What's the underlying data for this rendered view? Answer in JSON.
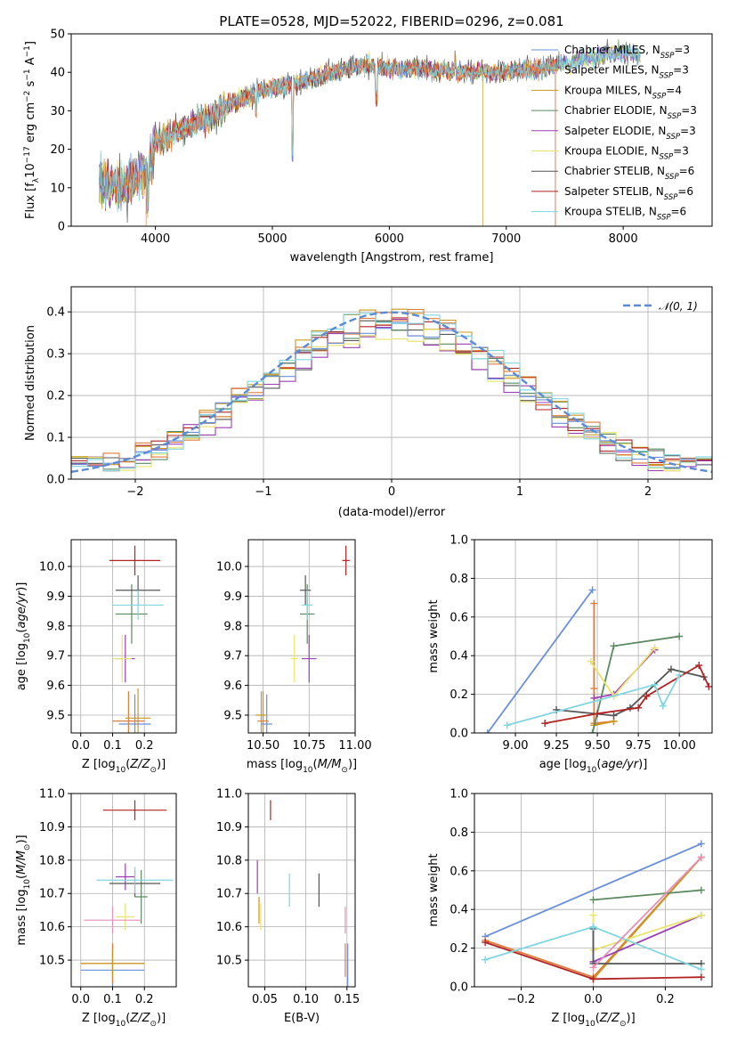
{
  "title": "PLATE=0528, MJD=52022, FIBERID=0296, z=0.081",
  "legend_labels": [
    {
      "base": "Chabrier MILES, N",
      "sub": "SSP",
      "tail": "=3"
    },
    {
      "base": "Salpeter MILES, N",
      "sub": "SSP",
      "tail": "=3"
    },
    {
      "base": "Kroupa MILES, N",
      "sub": "SSP",
      "tail": "=4"
    },
    {
      "base": "Chabrier ELODIE, N",
      "sub": "SSP",
      "tail": "=3"
    },
    {
      "base": "Salpeter ELODIE, N",
      "sub": "SSP",
      "tail": "=3"
    },
    {
      "base": "Kroupa ELODIE, N",
      "sub": "SSP",
      "tail": "=3"
    },
    {
      "base": "Chabrier STELIB, N",
      "sub": "SSP",
      "tail": "=6"
    },
    {
      "base": "Salpeter STELIB, N",
      "sub": "SSP",
      "tail": "=6"
    },
    {
      "base": "Kroupa STELIB, N",
      "sub": "SSP",
      "tail": "=6"
    }
  ],
  "colors": [
    "#6a8fd9",
    "#e07b39",
    "#c9971d",
    "#5a8a5f",
    "#9b3fb5",
    "#e8e36a",
    "#555555",
    "#b22222",
    "#7fd6e0"
  ],
  "chart_data": [
    {
      "id": "spectrum",
      "type": "line",
      "xlabel": "wavelength [Angstrom, rest frame]",
      "ylabel": "Flux [f_λ 10^-17 erg cm^-2 s^-1 A^-1]",
      "xlim": [
        3280,
        8760
      ],
      "ylim": [
        0,
        50
      ],
      "xticks": [
        4000,
        5000,
        6000,
        7000,
        8000
      ],
      "yticks": [
        0,
        10,
        20,
        30,
        40,
        50
      ],
      "grid": false,
      "legend": "right",
      "continuum": [
        [
          3520,
          12
        ],
        [
          3700,
          10
        ],
        [
          3900,
          14
        ],
        [
          4000,
          22
        ],
        [
          4200,
          25
        ],
        [
          4400,
          27
        ],
        [
          4700,
          33
        ],
        [
          5000,
          36
        ],
        [
          5200,
          37
        ],
        [
          5500,
          40
        ],
        [
          5800,
          42
        ],
        [
          6000,
          41
        ],
        [
          6300,
          41
        ],
        [
          6600,
          40
        ],
        [
          7000,
          40
        ],
        [
          7300,
          41
        ],
        [
          7600,
          43
        ],
        [
          7900,
          45
        ],
        [
          8100,
          45
        ],
        [
          8150,
          44
        ]
      ],
      "series_ends": [
        8150,
        7450,
        6800,
        8150,
        8150,
        8150,
        8150,
        7450,
        8150
      ],
      "dropouts": [
        [
          3920,
          1
        ],
        [
          6800,
          2
        ],
        [
          7420,
          1
        ],
        [
          7420,
          7
        ]
      ],
      "absorption_lines": [
        [
          3934,
          8
        ],
        [
          3969,
          6
        ],
        [
          4861,
          5
        ],
        [
          5175,
          18
        ],
        [
          5890,
          8
        ],
        [
          6563,
          -3
        ]
      ]
    },
    {
      "id": "residuals",
      "type": "step",
      "xlabel": "(data-model)/error",
      "ylabel": "Normed distribution",
      "xlim": [
        -2.5,
        2.5
      ],
      "ylim": [
        0,
        0.46
      ],
      "xticks": [
        -2,
        -1,
        0,
        1,
        2
      ],
      "yticks": [
        0.0,
        0.1,
        0.2,
        0.3,
        0.4
      ],
      "grid": true,
      "legend": "top-right",
      "gaussian_label": "N(0,1)",
      "gaussian_color": "#5b8bd5",
      "bins": 40
    },
    {
      "id": "age_vs_Z",
      "type": "errorbar",
      "xlabel": "Z [log10(Z/Z_sun)]",
      "ylabel": "age  [log10(age/yr)]",
      "xlim": [
        -0.03,
        0.3
      ],
      "ylim": [
        9.44,
        10.09
      ],
      "xticks": [
        0.0,
        0.1,
        0.2
      ],
      "yticks": [
        9.5,
        9.6,
        9.7,
        9.8,
        9.9,
        10.0
      ],
      "grid": true,
      "points": [
        {
          "x": 0.17,
          "xerr": 0.05,
          "y": 9.47,
          "yerr": 0.1,
          "c": 0
        },
        {
          "x": 0.15,
          "xerr": 0.05,
          "y": 9.48,
          "yerr": 0.1,
          "c": 1
        },
        {
          "x": 0.18,
          "xerr": 0.04,
          "y": 9.49,
          "yerr": 0.1,
          "c": 2
        },
        {
          "x": 0.16,
          "xerr": 0.05,
          "y": 9.84,
          "yerr": 0.1,
          "c": 3
        },
        {
          "x": 0.14,
          "xerr": 0.03,
          "y": 9.69,
          "yerr": 0.08,
          "c": 4
        },
        {
          "x": 0.13,
          "xerr": 0.03,
          "y": 9.69,
          "yerr": 0.08,
          "c": 5
        },
        {
          "x": 0.18,
          "xerr": 0.07,
          "y": 9.92,
          "yerr": 0.05,
          "c": 6
        },
        {
          "x": 0.17,
          "xerr": 0.08,
          "y": 10.02,
          "yerr": 0.05,
          "c": 7
        },
        {
          "x": 0.18,
          "xerr": 0.08,
          "y": 9.87,
          "yerr": 0.05,
          "c": 8
        }
      ]
    },
    {
      "id": "age_vs_mass",
      "type": "errorbar",
      "xlabel": "mass [log10(M/M_sun)]",
      "ylabel": "",
      "xlim": [
        10.42,
        11.0
      ],
      "ylim": [
        9.44,
        10.09
      ],
      "xticks": [
        10.5,
        10.75,
        11.0
      ],
      "yticks": [
        9.5,
        9.6,
        9.7,
        9.8,
        9.9,
        10.0
      ],
      "grid": true,
      "points": [
        {
          "x": 10.52,
          "xerr": 0.03,
          "y": 9.47,
          "yerr": 0.1,
          "c": 0
        },
        {
          "x": 10.5,
          "xerr": 0.03,
          "y": 9.48,
          "yerr": 0.1,
          "c": 1
        },
        {
          "x": 10.49,
          "xerr": 0.03,
          "y": 9.5,
          "yerr": 0.08,
          "c": 2
        },
        {
          "x": 10.74,
          "xerr": 0.04,
          "y": 9.84,
          "yerr": 0.1,
          "c": 3
        },
        {
          "x": 10.75,
          "xerr": 0.04,
          "y": 9.69,
          "yerr": 0.08,
          "c": 4
        },
        {
          "x": 10.67,
          "xerr": 0.02,
          "y": 9.69,
          "yerr": 0.08,
          "c": 5
        },
        {
          "x": 10.73,
          "xerr": 0.03,
          "y": 9.92,
          "yerr": 0.05,
          "c": 6
        },
        {
          "x": 10.95,
          "xerr": 0.02,
          "y": 10.02,
          "yerr": 0.05,
          "c": 7
        },
        {
          "x": 10.74,
          "xerr": 0.03,
          "y": 9.87,
          "yerr": 0.05,
          "c": 8
        }
      ]
    },
    {
      "id": "weight_vs_age",
      "type": "line",
      "xlabel": "age  [log10(age/yr)]",
      "ylabel": "mass weight",
      "xlim": [
        8.75,
        10.2
      ],
      "ylim": [
        0.0,
        1.0
      ],
      "xticks": [
        9.0,
        9.25,
        9.5,
        9.75,
        10.0
      ],
      "yticks": [
        0.0,
        0.2,
        0.4,
        0.6,
        0.8,
        1.0
      ],
      "grid": true,
      "series": [
        {
          "c": 0,
          "points": [
            [
              8.83,
              0.0
            ],
            [
              9.47,
              0.74
            ]
          ]
        },
        {
          "c": 1,
          "points": [
            [
              9.48,
              0.67
            ],
            [
              9.48,
              0.23
            ],
            [
              9.48,
              0.05
            ],
            [
              9.6,
              0.06
            ]
          ]
        },
        {
          "c": 2,
          "points": [
            [
              9.48,
              0.04
            ],
            [
              9.6,
              0.06
            ]
          ]
        },
        {
          "c": 3,
          "points": [
            [
              9.47,
              0.0
            ],
            [
              9.6,
              0.45
            ],
            [
              10.0,
              0.5
            ]
          ]
        },
        {
          "c": 4,
          "points": [
            [
              9.48,
              0.18
            ],
            [
              9.6,
              0.2
            ],
            [
              9.85,
              0.43
            ]
          ]
        },
        {
          "c": 5,
          "points": [
            [
              9.46,
              0.37
            ],
            [
              9.6,
              0.19
            ],
            [
              9.85,
              0.44
            ]
          ]
        },
        {
          "c": 6,
          "points": [
            [
              9.25,
              0.12
            ],
            [
              9.6,
              0.09
            ],
            [
              9.7,
              0.13
            ],
            [
              9.95,
              0.33
            ],
            [
              10.15,
              0.29
            ]
          ]
        },
        {
          "c": 7,
          "points": [
            [
              9.18,
              0.05
            ],
            [
              9.5,
              0.1
            ],
            [
              9.75,
              0.13
            ],
            [
              9.8,
              0.19
            ],
            [
              10.12,
              0.35
            ],
            [
              10.18,
              0.24
            ]
          ]
        },
        {
          "c": 8,
          "points": [
            [
              8.95,
              0.04
            ],
            [
              9.85,
              0.25
            ],
            [
              9.9,
              0.14
            ],
            [
              10.0,
              0.3
            ]
          ]
        }
      ]
    },
    {
      "id": "mass_vs_Z",
      "type": "errorbar",
      "xlabel": "Z [log10(Z/Z_sun)]",
      "ylabel": "mass [log10(M/M_sun)]",
      "xlim": [
        -0.03,
        0.3
      ],
      "ylim": [
        10.42,
        11.0
      ],
      "xticks": [
        0.0,
        0.1,
        0.2
      ],
      "yticks": [
        10.5,
        10.6,
        10.7,
        10.8,
        10.9,
        11.0
      ],
      "grid": true,
      "points": [
        {
          "x": 0.1,
          "xerr": 0.1,
          "y": 10.47,
          "yerr": 0.08,
          "c": 0
        },
        {
          "x": 0.1,
          "xerr": 0.1,
          "y": 10.49,
          "yerr": 0.06,
          "c": 1
        },
        {
          "x": 0.1,
          "xerr": 0.1,
          "y": 10.49,
          "yerr": 0.04,
          "c": 2
        },
        {
          "x": 0.19,
          "xerr": 0.02,
          "y": 10.69,
          "yerr": 0.08,
          "c": 3
        },
        {
          "x": 0.14,
          "xerr": 0.03,
          "y": 10.75,
          "yerr": 0.04,
          "c": 4
        },
        {
          "x": 0.14,
          "xerr": 0.03,
          "y": 10.63,
          "yerr": 0.04,
          "c": 5
        },
        {
          "x": 0.17,
          "xerr": 0.08,
          "y": 10.73,
          "yerr": 0.04,
          "c": 6
        },
        {
          "x": 0.17,
          "xerr": 0.1,
          "y": 10.95,
          "yerr": 0.03,
          "c": 7
        },
        {
          "x": 0.17,
          "xerr": 0.12,
          "y": 10.74,
          "yerr": 0.04,
          "c": 8
        },
        {
          "x": 0.1,
          "xerr": 0.09,
          "y": 10.62,
          "yerr": 0.04,
          "c": -1
        }
      ]
    },
    {
      "id": "mass_vs_ebv",
      "type": "errorbar",
      "xlabel": "E(B-V)",
      "ylabel": "",
      "xlim": [
        0.03,
        0.16
      ],
      "ylim": [
        10.42,
        11.0
      ],
      "xticks": [
        0.05,
        0.1,
        0.15
      ],
      "yticks": [
        10.5,
        10.6,
        10.7,
        10.8,
        10.9,
        11.0
      ],
      "grid": true,
      "points": [
        {
          "x": 0.151,
          "xerr": 0.0,
          "y": 10.48,
          "yerr": 0.07,
          "c": 0
        },
        {
          "x": 0.148,
          "xerr": 0.0,
          "y": 10.5,
          "yerr": 0.05,
          "c": 1
        },
        {
          "x": 0.043,
          "xerr": 0.0,
          "y": 10.65,
          "yerr": 0.04,
          "c": 2
        },
        {
          "x": 0.041,
          "xerr": 0.0,
          "y": 10.75,
          "yerr": 0.05,
          "c": 4
        },
        {
          "x": 0.045,
          "xerr": 0.0,
          "y": 10.63,
          "yerr": 0.04,
          "c": 5
        },
        {
          "x": 0.116,
          "xerr": 0.0,
          "y": 10.71,
          "yerr": 0.05,
          "c": 6
        },
        {
          "x": 0.057,
          "xerr": 0.0,
          "y": 10.95,
          "yerr": 0.03,
          "c": 7
        },
        {
          "x": 0.08,
          "xerr": 0.0,
          "y": 10.71,
          "yerr": 0.05,
          "c": 8
        },
        {
          "x": 0.148,
          "xerr": 0.0,
          "y": 10.62,
          "yerr": 0.04,
          "c": -1
        }
      ]
    },
    {
      "id": "weight_vs_Z",
      "type": "line",
      "xlabel": "Z [log10(Z/Z_sun)]",
      "ylabel": "mass weight",
      "xlim": [
        -0.33,
        0.33
      ],
      "ylim": [
        0.0,
        1.0
      ],
      "xticks": [
        -0.2,
        0.0,
        0.2
      ],
      "yticks": [
        0.0,
        0.2,
        0.4,
        0.6,
        0.8,
        1.0
      ],
      "grid": true,
      "series": [
        {
          "c": 0,
          "points": [
            [
              -0.3,
              0.26
            ],
            [
              0.3,
              0.74
            ]
          ]
        },
        {
          "c": 1,
          "points": [
            [
              -0.3,
              0.24
            ],
            [
              0.0,
              0.05
            ],
            [
              0.3,
              0.67
            ]
          ]
        },
        {
          "c": 2,
          "points": [
            [
              0.0,
              0.04
            ],
            [
              0.3,
              0.67
            ]
          ]
        },
        {
          "c": 3,
          "points": [
            [
              0.0,
              0.45
            ],
            [
              0.3,
              0.5
            ]
          ]
        },
        {
          "c": 4,
          "points": [
            [
              0.0,
              0.13
            ],
            [
              0.3,
              0.37
            ]
          ]
        },
        {
          "c": 5,
          "points": [
            [
              0.0,
              0.37
            ],
            [
              0.0,
              0.19
            ],
            [
              0.3,
              0.37
            ]
          ]
        },
        {
          "c": 6,
          "points": [
            [
              0.0,
              0.3
            ],
            [
              0.0,
              0.12
            ],
            [
              0.3,
              0.12
            ]
          ]
        },
        {
          "c": 7,
          "points": [
            [
              -0.3,
              0.23
            ],
            [
              0.0,
              0.04
            ],
            [
              0.3,
              0.05
            ]
          ]
        },
        {
          "c": 8,
          "points": [
            [
              -0.3,
              0.14
            ],
            [
              0.0,
              0.31
            ],
            [
              0.3,
              0.09
            ]
          ]
        },
        {
          "c": -1,
          "points": [
            [
              0.0,
              0.1
            ],
            [
              0.3,
              0.67
            ]
          ]
        }
      ]
    }
  ]
}
